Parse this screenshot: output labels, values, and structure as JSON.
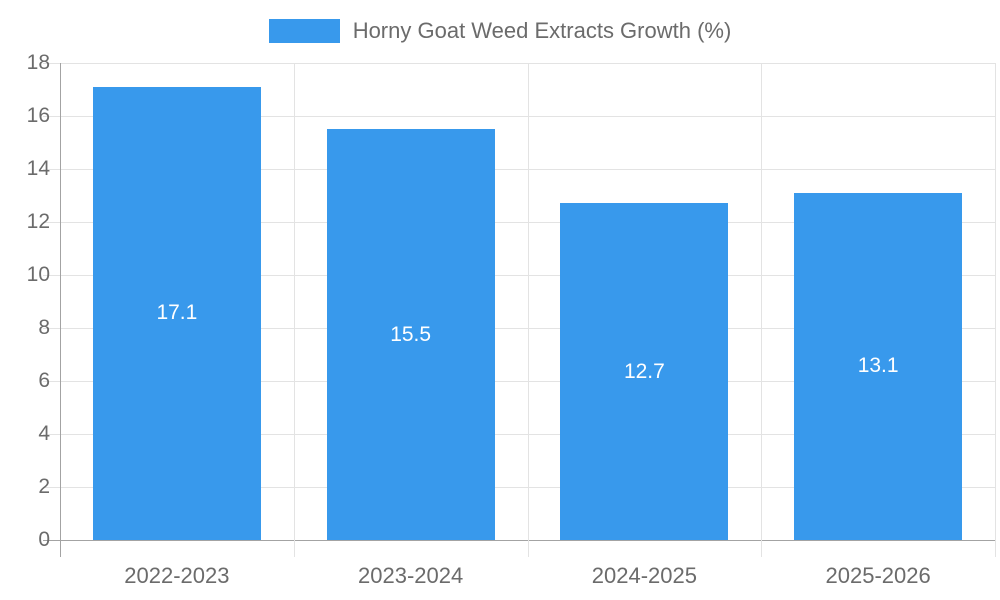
{
  "legend": {
    "label": "Horny Goat Weed Extracts Growth (%)"
  },
  "colors": {
    "bar": "#3899ec",
    "grid": "#e3e3e3",
    "axis": "#a3a3a3",
    "tick_text": "#6b6b6b",
    "value_text": "#ffffff",
    "background": "#ffffff"
  },
  "chart_data": {
    "type": "bar",
    "title": "Horny Goat Weed Extracts Growth (%)",
    "categories": [
      "2022-2023",
      "2023-2024",
      "2024-2025",
      "2025-2026"
    ],
    "values": [
      17.1,
      15.5,
      12.7,
      13.1
    ],
    "value_labels": [
      "17.1",
      "15.5",
      "12.7",
      "13.1"
    ],
    "ytick_labels": [
      "0",
      "2",
      "4",
      "6",
      "8",
      "10",
      "12",
      "14",
      "16",
      "18"
    ],
    "xlabel": "",
    "ylabel": "",
    "ylim": [
      0,
      18
    ],
    "ytick_step": 2,
    "grid": true,
    "legend_position": "top"
  }
}
